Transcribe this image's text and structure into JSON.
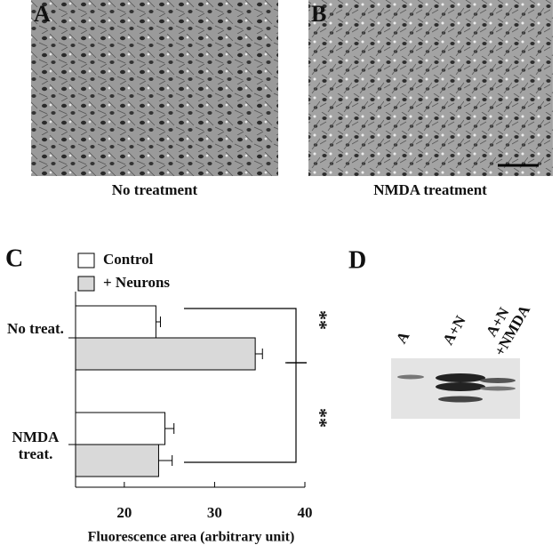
{
  "panels": {
    "a": {
      "letter": "A",
      "caption": "No treatment"
    },
    "b": {
      "letter": "B",
      "caption": "NMDA treatment"
    },
    "d": {
      "letter": "D",
      "lanes": [
        "A",
        "A+N",
        "A+N +NMDA"
      ]
    }
  },
  "chart_data": {
    "type": "bar",
    "orientation": "horizontal",
    "panel": "C",
    "categories": [
      "No treat.",
      "NMDA treat."
    ],
    "series": [
      {
        "name": "Control",
        "color": "#ffffff",
        "values": [
          23.5,
          24.5
        ],
        "errors": [
          0.5,
          1.0
        ]
      },
      {
        "name": "+ Neurons",
        "color": "#d9d9d9",
        "values": [
          34.5,
          23.8
        ],
        "errors": [
          0.8,
          1.5
        ]
      }
    ],
    "xlabel": "Fluorescence area (arbitrary unit)",
    "xlim": [
      14.6,
      40
    ],
    "xticks": [
      20,
      30,
      40
    ],
    "annotations": [
      "**",
      "**"
    ]
  }
}
